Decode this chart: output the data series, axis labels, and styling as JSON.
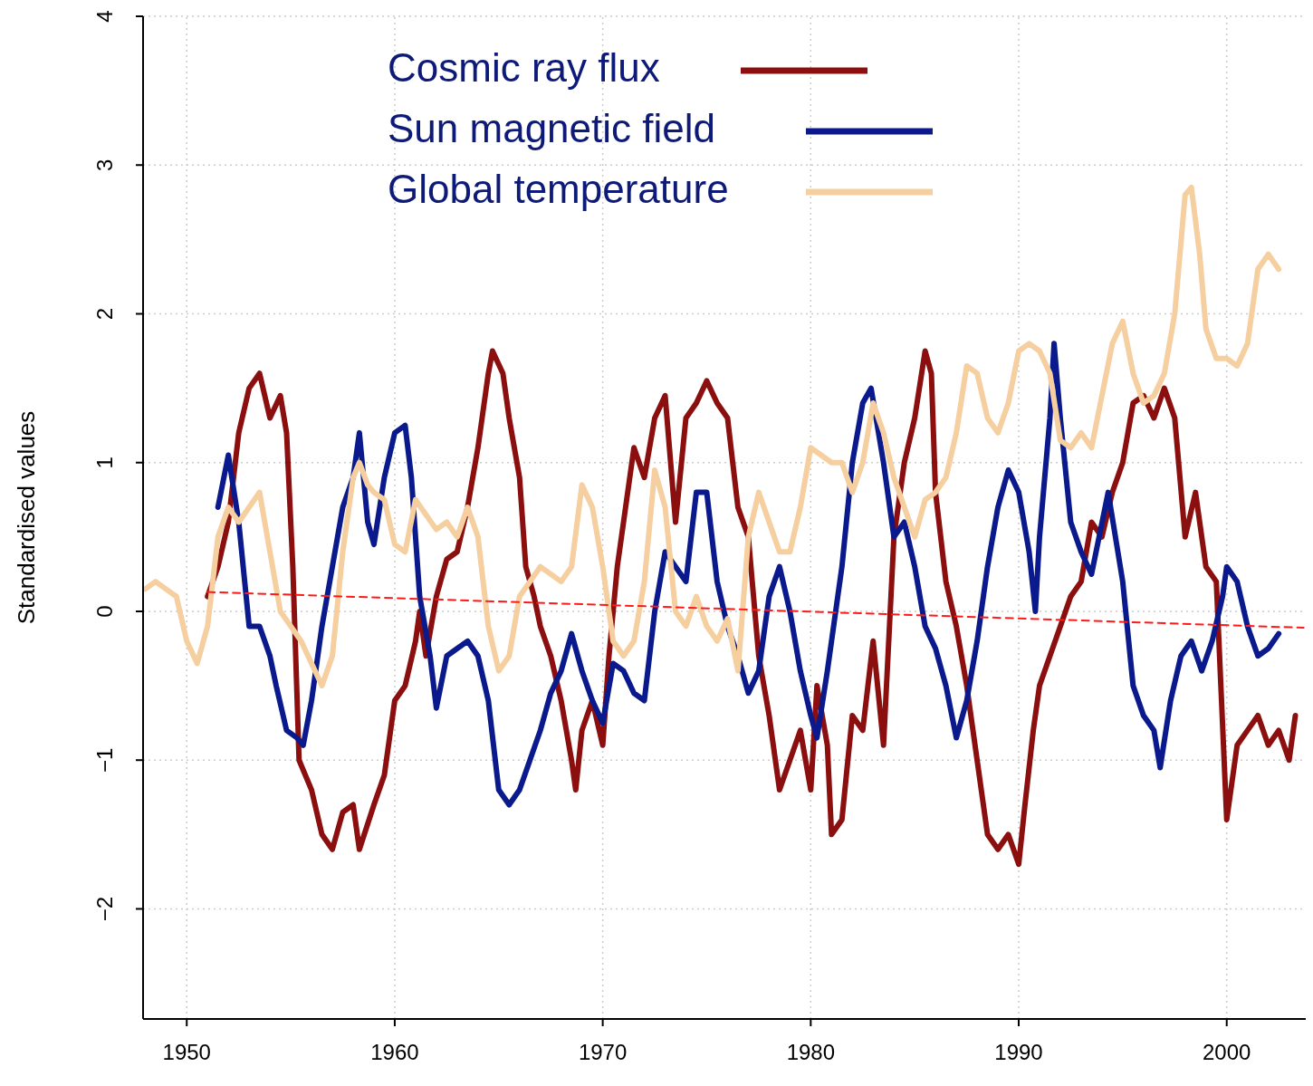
{
  "chart_data": {
    "type": "line",
    "ylabel": "Standardised values",
    "xlim": [
      1947.9,
      2003.8
    ],
    "ylim": [
      -2.74,
      4
    ],
    "xticks": [
      1950,
      1960,
      1970,
      1980,
      1990,
      2000
    ],
    "yticks": [
      -2,
      -1,
      0,
      1,
      2,
      3,
      4
    ],
    "grid": true,
    "legend": "top",
    "series": [
      {
        "name": "Cosmic ray flux",
        "color": "#8b0f0f",
        "x": [
          1951,
          1951.5,
          1952,
          1952.5,
          1953,
          1953.5,
          1954,
          1954.5,
          1954.8,
          1955.1,
          1955.4,
          1956,
          1956.5,
          1957,
          1957.5,
          1958,
          1958.3,
          1959,
          1959.5,
          1960,
          1960.5,
          1961,
          1961.2,
          1961.5,
          1962,
          1962.5,
          1963,
          1963.5,
          1964,
          1964.5,
          1964.7,
          1965.2,
          1965.5,
          1966,
          1966.3,
          1966.7,
          1967,
          1967.5,
          1968,
          1968.5,
          1968.7,
          1969,
          1969.5,
          1970,
          1970.3,
          1970.7,
          1971,
          1971.5,
          1972,
          1972.5,
          1973,
          1973.5,
          1974,
          1974.5,
          1975,
          1975.5,
          1976,
          1976.5,
          1977,
          1977.5,
          1978,
          1978.5,
          1979,
          1979.5,
          1980,
          1980.3,
          1980.8,
          1981,
          1981.5,
          1982,
          1982.5,
          1983,
          1983.5,
          1984,
          1984.5,
          1985,
          1985.5,
          1985.8,
          1986,
          1986.5,
          1987,
          1987.5,
          1988,
          1988.5,
          1989,
          1989.5,
          1990,
          1990.3,
          1990.7,
          1991,
          1991.5,
          1992,
          1992.5,
          1993,
          1993.5,
          1994,
          1994.5,
          1995,
          1995.5,
          1996,
          1996.5,
          1997,
          1997.5,
          1998,
          1998.5,
          1999,
          1999.5,
          2000,
          2000.5,
          2001,
          2001.5,
          2002,
          2002.5,
          2003,
          2003.3
        ],
        "values": [
          0.1,
          0.3,
          0.6,
          1.2,
          1.5,
          1.6,
          1.3,
          1.45,
          1.2,
          0.3,
          -1.0,
          -1.2,
          -1.5,
          -1.6,
          -1.35,
          -1.3,
          -1.6,
          -1.3,
          -1.1,
          -0.6,
          -0.5,
          -0.2,
          0.0,
          -0.3,
          0.1,
          0.35,
          0.4,
          0.7,
          1.1,
          1.6,
          1.75,
          1.6,
          1.3,
          0.9,
          0.3,
          0.1,
          -0.1,
          -0.3,
          -0.6,
          -1.0,
          -1.2,
          -0.8,
          -0.6,
          -0.9,
          -0.3,
          0.3,
          0.6,
          1.1,
          0.9,
          1.3,
          1.45,
          0.6,
          1.3,
          1.4,
          1.55,
          1.4,
          1.3,
          0.7,
          0.5,
          -0.3,
          -0.7,
          -1.2,
          -1.0,
          -0.8,
          -1.2,
          -0.5,
          -0.9,
          -1.5,
          -1.4,
          -0.7,
          -0.8,
          -0.2,
          -0.9,
          0.5,
          1.0,
          1.3,
          1.75,
          1.6,
          0.8,
          0.2,
          -0.1,
          -0.5,
          -1.0,
          -1.5,
          -1.6,
          -1.5,
          -1.7,
          -1.3,
          -0.8,
          -0.5,
          -0.3,
          -0.1,
          0.1,
          0.2,
          0.6,
          0.5,
          0.8,
          1.0,
          1.4,
          1.45,
          1.3,
          1.5,
          1.3,
          0.5,
          0.8,
          0.3,
          0.2,
          -1.4,
          -0.9,
          -0.8,
          -0.7,
          -0.9,
          -0.8,
          -1.0,
          -0.7
        ]
      },
      {
        "name": "Sun magnetic field",
        "color": "#0a1a8c",
        "x": [
          1951.5,
          1952,
          1952.5,
          1953,
          1953.5,
          1954,
          1954.3,
          1954.8,
          1955.3,
          1955.6,
          1956,
          1956.5,
          1957,
          1957.5,
          1958,
          1958.3,
          1958.7,
          1959,
          1959.5,
          1960,
          1960.5,
          1960.8,
          1961.2,
          1961.7,
          1962,
          1962.5,
          1963,
          1963.5,
          1964,
          1964.5,
          1965,
          1965.5,
          1966,
          1966.5,
          1967,
          1967.5,
          1968,
          1968.5,
          1969,
          1969.5,
          1970,
          1970.5,
          1971,
          1971.5,
          1972,
          1972.5,
          1973,
          1973.5,
          1974,
          1974.5,
          1975,
          1975.5,
          1976,
          1976.5,
          1977,
          1977.5,
          1978,
          1978.5,
          1979,
          1979.5,
          1980,
          1980.3,
          1980.8,
          1981.5,
          1982,
          1982.5,
          1982.9,
          1983.5,
          1984,
          1984.5,
          1985,
          1985.5,
          1986,
          1986.5,
          1987,
          1987.5,
          1988,
          1988.5,
          1989,
          1989.5,
          1990,
          1990.5,
          1990.8,
          1991,
          1991.5,
          1991.7,
          1992,
          1992.5,
          1993,
          1993.5,
          1994.3,
          1995,
          1995.5,
          1996,
          1996.5,
          1996.8,
          1997.3,
          1997.8,
          1998.3,
          1998.8,
          1999.3,
          1999.8,
          2000,
          2000.5,
          2001,
          2001.5,
          2002,
          2002.5
        ],
        "values": [
          0.7,
          1.05,
          0.6,
          -0.1,
          -0.1,
          -0.3,
          -0.5,
          -0.8,
          -0.85,
          -0.9,
          -0.6,
          -0.1,
          0.3,
          0.7,
          0.9,
          1.2,
          0.6,
          0.45,
          0.9,
          1.2,
          1.25,
          0.9,
          0.1,
          -0.3,
          -0.65,
          -0.3,
          -0.25,
          -0.2,
          -0.3,
          -0.6,
          -1.2,
          -1.3,
          -1.2,
          -1.0,
          -0.8,
          -0.55,
          -0.4,
          -0.15,
          -0.4,
          -0.6,
          -0.75,
          -0.35,
          -0.4,
          -0.55,
          -0.6,
          0.0,
          0.4,
          0.3,
          0.2,
          0.8,
          0.8,
          0.2,
          -0.1,
          -0.3,
          -0.55,
          -0.4,
          0.1,
          0.3,
          0.0,
          -0.4,
          -0.7,
          -0.85,
          -0.4,
          0.3,
          1.0,
          1.4,
          1.5,
          1.0,
          0.5,
          0.6,
          0.3,
          -0.1,
          -0.25,
          -0.5,
          -0.85,
          -0.6,
          -0.2,
          0.3,
          0.7,
          0.95,
          0.8,
          0.4,
          0.0,
          0.5,
          1.3,
          1.8,
          1.3,
          0.6,
          0.4,
          0.25,
          0.8,
          0.2,
          -0.5,
          -0.7,
          -0.8,
          -1.05,
          -0.6,
          -0.3,
          -0.2,
          -0.4,
          -0.2,
          0.1,
          0.3,
          0.2,
          -0.1,
          -0.3,
          -0.25,
          -0.15
        ]
      },
      {
        "name": "Global temperature",
        "color": "#f5cfa0",
        "x": [
          1948,
          1948.5,
          1949,
          1949.5,
          1950,
          1950.5,
          1951,
          1951.5,
          1952,
          1952.5,
          1953,
          1953.5,
          1954,
          1954.5,
          1955,
          1955.5,
          1956,
          1956.5,
          1957,
          1957.5,
          1958,
          1958.3,
          1958.7,
          1959,
          1959.5,
          1960,
          1960.5,
          1961,
          1961.5,
          1962,
          1962.5,
          1963,
          1963.5,
          1964,
          1964.5,
          1965,
          1965.5,
          1966,
          1966.5,
          1967,
          1967.5,
          1968,
          1968.5,
          1969,
          1969.5,
          1970,
          1970.5,
          1971,
          1971.5,
          1972,
          1972.5,
          1973,
          1973.5,
          1974,
          1974.5,
          1975,
          1975.5,
          1976,
          1976.5,
          1977,
          1977.5,
          1978,
          1978.5,
          1979,
          1979.5,
          1980,
          1980.5,
          1981,
          1981.5,
          1982,
          1982.5,
          1983,
          1983.5,
          1984,
          1984.5,
          1985,
          1985.5,
          1986,
          1986.5,
          1987,
          1987.5,
          1988,
          1988.5,
          1989,
          1989.5,
          1990,
          1990.5,
          1991,
          1991.5,
          1992,
          1992.5,
          1993,
          1993.5,
          1994,
          1994.5,
          1995,
          1995.5,
          1996,
          1996.5,
          1997,
          1997.5,
          1998,
          1998.3,
          1998.7,
          1999,
          1999.5,
          2000,
          2000.5,
          2001,
          2001.5,
          2002,
          2002.5
        ],
        "values": [
          0.15,
          0.2,
          0.15,
          0.1,
          -0.2,
          -0.35,
          -0.1,
          0.5,
          0.7,
          0.6,
          0.7,
          0.8,
          0.4,
          0.0,
          -0.1,
          -0.2,
          -0.35,
          -0.5,
          -0.3,
          0.4,
          0.9,
          1.0,
          0.85,
          0.8,
          0.75,
          0.45,
          0.4,
          0.75,
          0.65,
          0.55,
          0.6,
          0.5,
          0.7,
          0.5,
          -0.1,
          -0.4,
          -0.3,
          0.1,
          0.2,
          0.3,
          0.25,
          0.2,
          0.3,
          0.85,
          0.7,
          0.3,
          -0.2,
          -0.3,
          -0.2,
          0.2,
          0.95,
          0.7,
          0.0,
          -0.1,
          0.1,
          -0.1,
          -0.2,
          -0.05,
          -0.4,
          0.5,
          0.8,
          0.6,
          0.4,
          0.4,
          0.7,
          1.1,
          1.05,
          1.0,
          1.0,
          0.8,
          1.0,
          1.4,
          1.2,
          0.9,
          0.7,
          0.5,
          0.75,
          0.8,
          0.9,
          1.2,
          1.65,
          1.6,
          1.3,
          1.2,
          1.4,
          1.75,
          1.8,
          1.75,
          1.6,
          1.15,
          1.1,
          1.2,
          1.1,
          1.45,
          1.8,
          1.95,
          1.6,
          1.4,
          1.45,
          1.6,
          2.0,
          2.8,
          2.85,
          2.4,
          1.9,
          1.7,
          1.7,
          1.65,
          1.8,
          2.3,
          2.4,
          2.3
        ]
      },
      {
        "type": "line",
        "color": "#ff1a1a",
        "line_style": "dashed",
        "x": [
          1951,
          2003.7
        ],
        "values": [
          0.13,
          -0.11
        ]
      }
    ]
  }
}
